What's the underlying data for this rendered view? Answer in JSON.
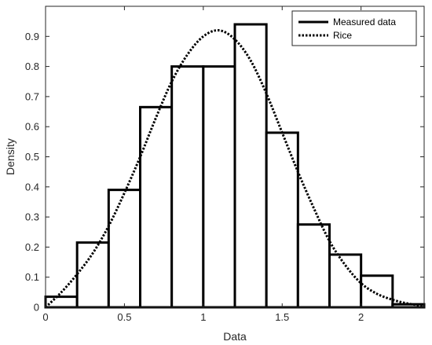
{
  "chart_data": {
    "type": "bar",
    "title": "",
    "xlabel": "Data",
    "ylabel": "Density",
    "xlim": [
      0,
      2.4
    ],
    "ylim": [
      0,
      1.0
    ],
    "x_ticks": [
      0,
      0.5,
      1,
      1.5,
      2
    ],
    "x_tick_labels": [
      "0",
      "0.5",
      "1",
      "1.5",
      "2"
    ],
    "y_ticks": [
      0,
      0.1,
      0.2,
      0.3,
      0.4,
      0.5,
      0.6,
      0.7,
      0.8,
      0.9
    ],
    "y_tick_labels": [
      "0",
      "0.1",
      "0.2",
      "0.3",
      "0.4",
      "0.5",
      "0.6",
      "0.7",
      "0.8",
      "0.9"
    ],
    "grid": false,
    "legend_position": "top-right",
    "series": [
      {
        "name": "Measured data",
        "type": "histogram",
        "bin_edges": [
          0,
          0.2,
          0.4,
          0.6,
          0.8,
          1.0,
          1.2,
          1.4,
          1.6,
          1.8,
          2.0,
          2.2,
          2.4
        ],
        "values": [
          0.035,
          0.215,
          0.39,
          0.665,
          0.8,
          0.8,
          0.94,
          0.58,
          0.275,
          0.175,
          0.105,
          0.01
        ],
        "color": "#000000"
      },
      {
        "name": "Rice",
        "type": "line",
        "line_style": "dotted",
        "x": [
          0,
          0.1,
          0.2,
          0.3,
          0.4,
          0.5,
          0.6,
          0.7,
          0.8,
          0.9,
          1.0,
          1.1,
          1.2,
          1.3,
          1.4,
          1.5,
          1.6,
          1.7,
          1.8,
          1.9,
          2.0,
          2.1,
          2.2,
          2.3,
          2.4
        ],
        "y": [
          0.0,
          0.05,
          0.11,
          0.18,
          0.27,
          0.38,
          0.5,
          0.63,
          0.75,
          0.84,
          0.9,
          0.92,
          0.89,
          0.82,
          0.71,
          0.58,
          0.45,
          0.33,
          0.22,
          0.14,
          0.08,
          0.045,
          0.025,
          0.012,
          0.005
        ],
        "color": "#000000"
      }
    ]
  }
}
